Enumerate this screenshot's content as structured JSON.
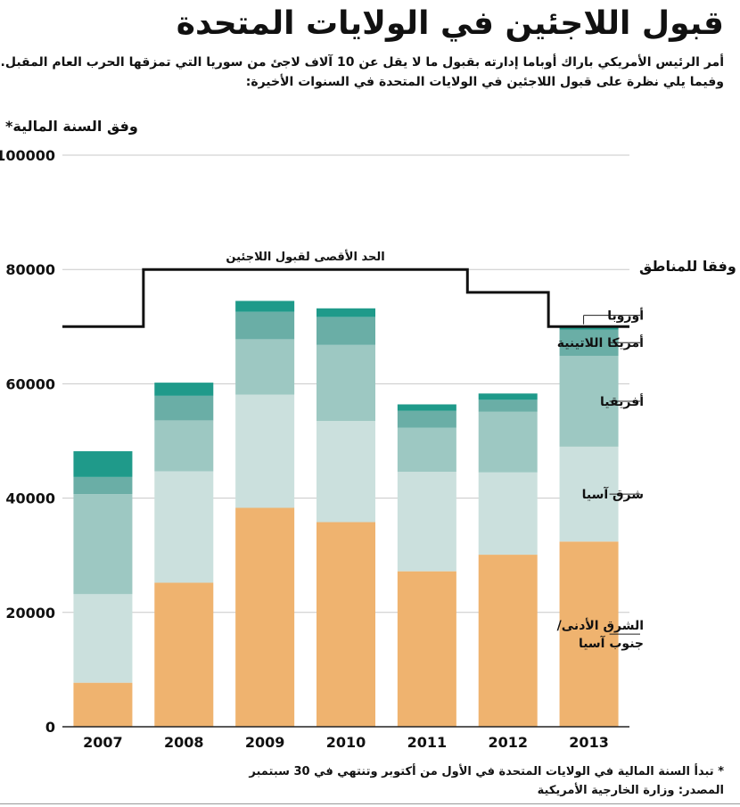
{
  "header": {
    "title": "قبول اللاجئين في الولايات المتحدة",
    "subtitle_line1": "أمر الرئيس الأمريكي باراك أوباما إدارته بقبول ما لا يقل عن 10 آلاف لاجئ من سوريا التي تمزقها الحرب العام المقبل.",
    "subtitle_line2": "وفيما يلي نظرة على قبول اللاجئين في الولايات المتحدة في السنوات الأخيرة:"
  },
  "footer": {
    "note": "* تبدأ السنة المالية في الولايات المتحدة في الأول من أكتوبر وتنتهي في 30 سبتمبر",
    "source": "المصدر: وزارة الخارجية الأمريكية"
  },
  "chart_data": {
    "type": "bar",
    "stacked": true,
    "ylabel": "وفق السنة المالية*",
    "legend_title": "وفقا للمناطق",
    "ylim": [
      0,
      100000
    ],
    "yticks": [
      0,
      20000,
      40000,
      60000,
      80000,
      100000
    ],
    "ytick_labels": [
      "0",
      "20000",
      "40000",
      "60000",
      "80000",
      "100000"
    ],
    "grid": true,
    "legend_position": "right",
    "categories": [
      "2007",
      "2008",
      "2009",
      "2010",
      "2011",
      "2012",
      "2013"
    ],
    "series": [
      {
        "name": "الشرق الأدنى/ جنوب آسيا",
        "label_lines": [
          "الشرق الأدنى/",
          "جنوب آسيا"
        ],
        "color": "#efb36f",
        "values": [
          7700,
          25200,
          38300,
          35800,
          27200,
          30100,
          32400
        ]
      },
      {
        "name": "شرق آسيا",
        "label_lines": [
          "شرق آسيا"
        ],
        "color": "#cbe0dd",
        "values": [
          15500,
          19500,
          19800,
          17700,
          17400,
          14400,
          16600
        ]
      },
      {
        "name": "أفريقيا",
        "label_lines": [
          "أفريقيا"
        ],
        "color": "#9dc8c2",
        "values": [
          17500,
          8900,
          9700,
          13300,
          7700,
          10600,
          15900
        ]
      },
      {
        "name": "أمريكا اللاتينية",
        "label_lines": [
          "أمريكا اللاتينية"
        ],
        "color": "#6aaea6",
        "values": [
          3000,
          4300,
          4800,
          4900,
          3000,
          2100,
          4600
        ]
      },
      {
        "name": "أوروبا",
        "label_lines": [
          "أوروبا"
        ],
        "color": "#1f9a8a",
        "values": [
          4500,
          2300,
          1900,
          1500,
          1100,
          1100,
          600
        ]
      }
    ],
    "ceiling": {
      "label": "الحد الأقصى لقبول اللاجئين",
      "values": [
        70000,
        80000,
        80000,
        80000,
        80000,
        76000,
        70000
      ]
    }
  }
}
